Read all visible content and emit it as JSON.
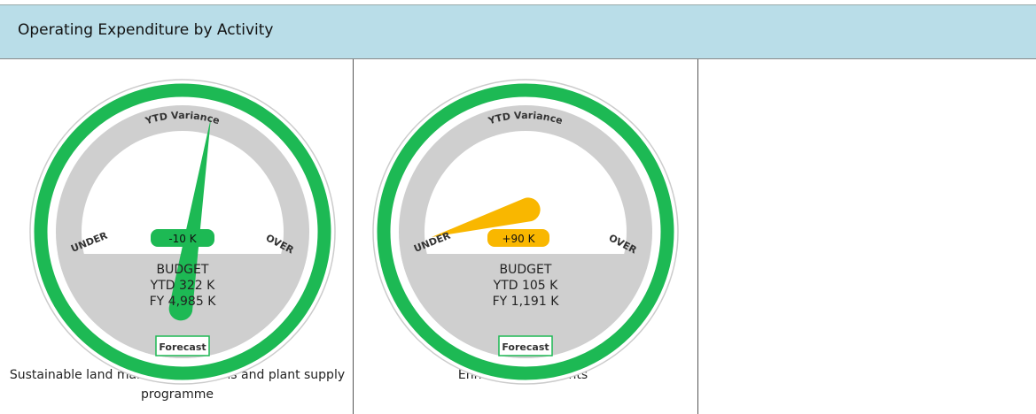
{
  "header": {
    "title": "Operating Expenditure by Activity"
  },
  "gauges": [
    {
      "top_label": "YTD Variance",
      "left_label": "UNDER",
      "right_label": "OVER",
      "bottom_label": "Forecast",
      "variance": "-10 K",
      "budget_title": "BUDGET",
      "budget_ytd": "YTD 322 K",
      "budget_fy": "FY 4,985 K",
      "caption": "Sustainable land management plans and plant supply programme"
    },
    {
      "top_label": "YTD Variance",
      "left_label": "UNDER",
      "right_label": "OVER",
      "bottom_label": "Forecast",
      "variance": "+90 K",
      "budget_title": "BUDGET",
      "budget_ytd": "YTD 105 K",
      "budget_fy": "FY 1,191 K",
      "caption": "Enhancement grants"
    }
  ]
}
